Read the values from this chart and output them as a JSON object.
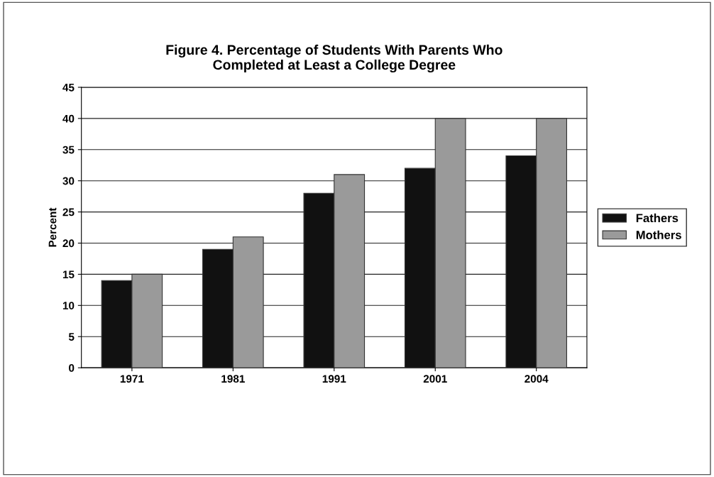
{
  "chart_data": {
    "type": "bar",
    "title": "Figure 4. Percentage of Students With Parents Who\nCompleted at Least a College Degree",
    "ylabel": "Percent",
    "categories": [
      "1971",
      "1981",
      "1991",
      "2001",
      "2004"
    ],
    "series": [
      {
        "name": "Fathers",
        "color": "#111111",
        "values": [
          14,
          19,
          28,
          32,
          34
        ]
      },
      {
        "name": "Mothers",
        "color": "#9a9a9a",
        "values": [
          15,
          21,
          31,
          40,
          40
        ]
      }
    ],
    "ylim": [
      0,
      45
    ],
    "yticks": [
      0,
      5,
      10,
      15,
      20,
      25,
      30,
      35,
      40,
      45
    ],
    "grid": "y",
    "legend": "right"
  }
}
